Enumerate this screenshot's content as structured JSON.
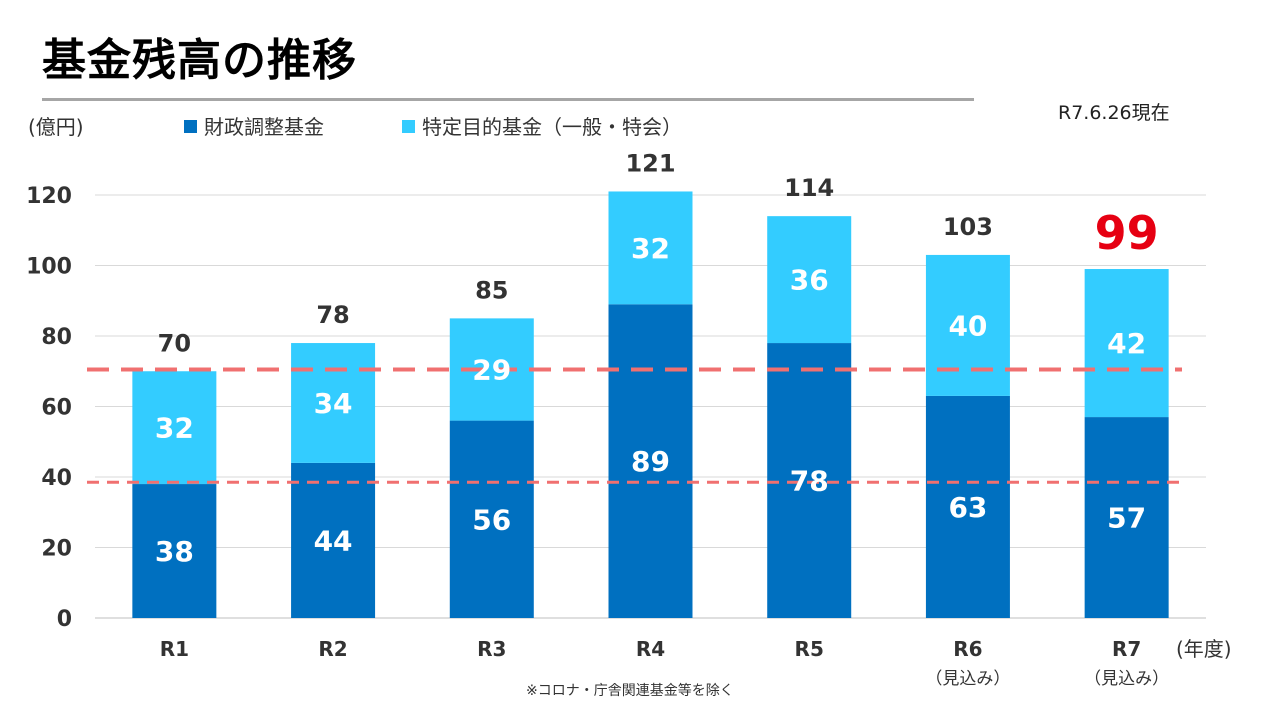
{
  "page": {
    "title": "基金残高の推移",
    "as_of": "R7.6.26現在"
  },
  "chart_data": {
    "type": "bar",
    "stacked": true,
    "categories": [
      "R1",
      "R2",
      "R3",
      "R4",
      "R5",
      "R6",
      "R7"
    ],
    "category_sublabels": [
      "",
      "",
      "",
      "",
      "",
      "（見込み）",
      "（見込み）"
    ],
    "series": [
      {
        "name": "財政調整基金",
        "values": [
          38,
          44,
          56,
          89,
          78,
          63,
          57
        ],
        "color": "#0070c0"
      },
      {
        "name": "特定目的基金（一般・特会）",
        "values": [
          32,
          34,
          29,
          32,
          36,
          40,
          42
        ],
        "color": "#33ccff"
      }
    ],
    "totals": [
      70,
      78,
      85,
      121,
      114,
      103,
      99
    ],
    "highlight_total_index": 6,
    "highlight_color": "#e60012",
    "y_unit": "(億円)",
    "x_unit": "(年度)",
    "ylim": [
      0,
      120
    ],
    "yticks": [
      0,
      20,
      40,
      60,
      80,
      100,
      120
    ],
    "grid": true,
    "legend_position": "top",
    "reference_lines": [
      {
        "value": 70.5,
        "style": "dashed-thick",
        "color": "#f07070"
      },
      {
        "value": 38.5,
        "style": "dashed",
        "color": "#f07070"
      }
    ],
    "note": "※コロナ・庁舎関連基金等を除く"
  }
}
